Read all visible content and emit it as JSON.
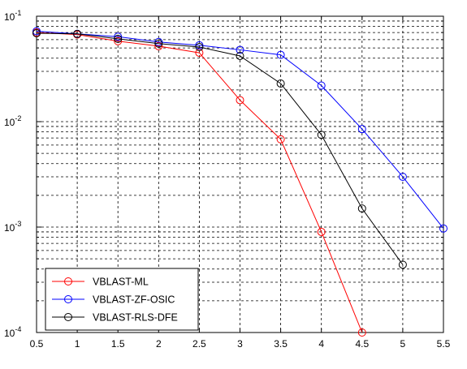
{
  "chart_data": {
    "type": "line",
    "yscale": "log",
    "xlim": [
      0.5,
      5.5
    ],
    "ylim": [
      0.0001,
      0.1
    ],
    "grid": true,
    "legend_position": "bottom-left",
    "x_ticks": [
      "0.5",
      "1",
      "1.5",
      "2",
      "2.5",
      "3",
      "3.5",
      "4",
      "4.5",
      "5",
      "5.5"
    ],
    "y_ticks": [
      {
        "base": "10",
        "exp": "-1"
      },
      {
        "base": "10",
        "exp": "-2"
      },
      {
        "base": "10",
        "exp": "-3"
      },
      {
        "base": "10",
        "exp": "-4"
      }
    ],
    "series": [
      {
        "name": "VBLAST-ML",
        "color": "#ff0000",
        "marker": "circle",
        "x": [
          0.5,
          1,
          1.5,
          2,
          2.5,
          3,
          3.5,
          4,
          4.5
        ],
        "y": [
          0.07,
          0.067,
          0.058,
          0.052,
          0.045,
          0.016,
          0.0068,
          0.0009,
          0.0001
        ]
      },
      {
        "name": "VBLAST-ZF-OSIC",
        "color": "#0000ff",
        "marker": "circle",
        "x": [
          0.5,
          1,
          1.5,
          2,
          2.5,
          3,
          3.5,
          4,
          4.5,
          5,
          5.5
        ],
        "y": [
          0.072,
          0.068,
          0.064,
          0.057,
          0.053,
          0.048,
          0.043,
          0.022,
          0.0085,
          0.003,
          0.00097
        ]
      },
      {
        "name": "VBLAST-RLS-DFE",
        "color": "#000000",
        "marker": "circle",
        "x": [
          0.5,
          1,
          1.5,
          2,
          2.5,
          3,
          3.5,
          4,
          4.5,
          5
        ],
        "y": [
          0.069,
          0.068,
          0.061,
          0.055,
          0.051,
          0.042,
          0.023,
          0.0075,
          0.0015,
          0.00044
        ]
      }
    ]
  }
}
